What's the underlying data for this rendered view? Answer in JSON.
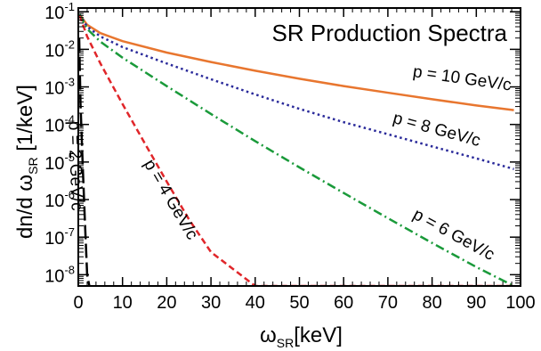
{
  "chart_data": {
    "type": "line",
    "title": "SR Production Spectra",
    "xlabel": {
      "main": "ω",
      "sub": "SR",
      "rest": "[keV]"
    },
    "ylabel": {
      "main": "dn/d ω",
      "sub": "SR",
      "rest": " [1/keV]"
    },
    "xlim": [
      0,
      100
    ],
    "ylim_log10": [
      -8.3,
      -0.9
    ],
    "y_scale": "log",
    "grid": false,
    "x_ticks": [
      0,
      10,
      20,
      30,
      40,
      50,
      60,
      70,
      80,
      90,
      100
    ],
    "y_ticks": [
      {
        "base": "10",
        "exp": "-1"
      },
      {
        "base": "10",
        "exp": "-2"
      },
      {
        "base": "10",
        "exp": "-3"
      },
      {
        "base": "10",
        "exp": "-4"
      },
      {
        "base": "10",
        "exp": "-5"
      },
      {
        "base": "10",
        "exp": "-6"
      },
      {
        "base": "10",
        "exp": "-7"
      },
      {
        "base": "10",
        "exp": "-8"
      }
    ],
    "series": [
      {
        "name": "p = 10 GeV/c",
        "color": "#e8762f",
        "dash": "solid",
        "x": [
          0.3,
          2,
          5,
          10,
          20,
          30,
          40,
          50,
          60,
          70,
          80,
          90,
          98.5
        ],
        "y": [
          0.085,
          0.045,
          0.027,
          0.0165,
          0.0082,
          0.0046,
          0.0027,
          0.00165,
          0.00105,
          0.0007,
          0.00047,
          0.00032,
          0.00024
        ]
      },
      {
        "name": "p = 8 GeV/c",
        "color": "#2a2a9a",
        "dash": "dot",
        "x": [
          0.3,
          2,
          5,
          10,
          20,
          30,
          40,
          50,
          60,
          70,
          80,
          90,
          98.5
        ],
        "y": [
          0.085,
          0.04,
          0.022,
          0.0115,
          0.0042,
          0.0016,
          0.00063,
          0.00026,
          0.000115,
          5.5e-05,
          2.6e-05,
          1.25e-05,
          6.5e-06
        ]
      },
      {
        "name": "p = 6 GeV/c",
        "color": "#1a9a3a",
        "dash": "dashdot",
        "x": [
          0.3,
          2,
          5,
          10,
          20,
          30,
          40,
          50,
          60,
          70,
          80,
          90,
          98.5
        ],
        "y": [
          0.085,
          0.035,
          0.016,
          0.006,
          0.00105,
          0.00019,
          3.6e-05,
          7.2e-06,
          1.5e-06,
          3.2e-07,
          7e-08,
          1.6e-08,
          5e-09
        ]
      },
      {
        "name": "p = 4 GeV/c",
        "color": "#e0262a",
        "dash": "dash",
        "x": [
          0.3,
          2,
          5,
          10,
          15,
          20,
          25,
          30,
          40,
          50,
          60,
          70,
          80,
          90,
          98.5
        ],
        "y": [
          0.08,
          0.022,
          0.0042,
          0.00035,
          3.2e-05,
          3e-06,
          3e-07,
          4e-08,
          5e-09,
          5e-09,
          5e-09,
          5e-09,
          5e-09,
          5e-09,
          5e-09
        ]
      },
      {
        "name": "p = 2 GeV/c",
        "color": "#000000",
        "dash": "longdash",
        "x": [
          0.2,
          0.5,
          1.0,
          1.5,
          2.0,
          2.5
        ],
        "y": [
          0.02,
          0.00035,
          8e-06,
          2.5e-07,
          1e-08,
          5e-09
        ]
      }
    ],
    "labels": [
      {
        "series": 0,
        "text": "p = 10 GeV/c"
      },
      {
        "series": 1,
        "text": "p = 8 GeV/c"
      },
      {
        "series": 2,
        "text": "p = 6 GeV/c"
      },
      {
        "series": 3,
        "text": "p = 4 GeV/c"
      },
      {
        "series": 4,
        "text": "p = 2 GeV/c"
      }
    ]
  }
}
